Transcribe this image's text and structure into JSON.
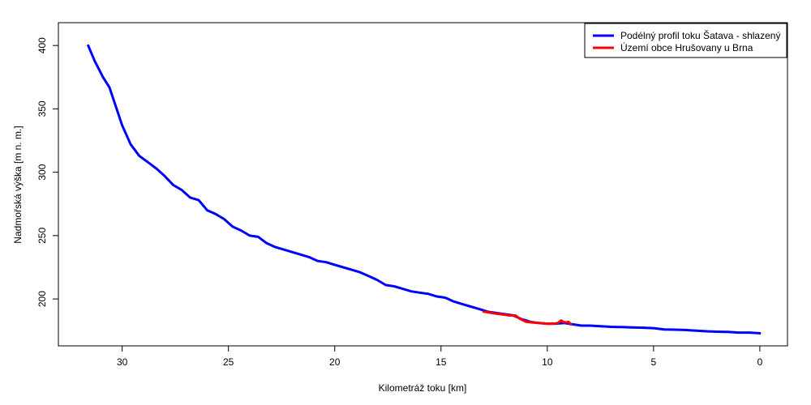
{
  "chart_data": {
    "type": "line",
    "xlabel": "Kilometráž toku [km]",
    "ylabel": "Nadmořská výška [m n. m.]",
    "xlim": [
      33.0,
      -1.3
    ],
    "ylim": [
      163,
      418
    ],
    "x_ticks": [
      30,
      25,
      20,
      15,
      10,
      5,
      0
    ],
    "y_ticks": [
      200,
      250,
      300,
      350,
      400
    ],
    "legend_position": "top-right",
    "series": [
      {
        "name": "Podélný profil toku Šatava - shlazený",
        "color": "#0000ff",
        "points": [
          [
            31.6,
            400
          ],
          [
            31.3,
            388
          ],
          [
            30.9,
            375
          ],
          [
            30.6,
            367
          ],
          [
            30.3,
            352
          ],
          [
            30.0,
            337
          ],
          [
            29.6,
            322
          ],
          [
            29.2,
            313
          ],
          [
            28.8,
            308
          ],
          [
            28.4,
            303
          ],
          [
            28.0,
            297
          ],
          [
            27.6,
            290
          ],
          [
            27.2,
            286
          ],
          [
            26.8,
            280
          ],
          [
            26.4,
            278
          ],
          [
            26.0,
            270
          ],
          [
            25.6,
            267
          ],
          [
            25.2,
            263
          ],
          [
            24.8,
            257
          ],
          [
            24.4,
            254
          ],
          [
            24.0,
            250
          ],
          [
            23.6,
            249
          ],
          [
            23.2,
            244
          ],
          [
            22.8,
            241
          ],
          [
            22.4,
            239
          ],
          [
            22.0,
            237
          ],
          [
            21.6,
            235
          ],
          [
            21.2,
            233
          ],
          [
            20.8,
            230
          ],
          [
            20.4,
            229
          ],
          [
            20.0,
            227
          ],
          [
            19.6,
            225
          ],
          [
            19.2,
            223
          ],
          [
            18.8,
            221
          ],
          [
            18.4,
            218
          ],
          [
            18.0,
            215
          ],
          [
            17.6,
            211
          ],
          [
            17.2,
            210
          ],
          [
            16.8,
            208
          ],
          [
            16.4,
            206
          ],
          [
            16.0,
            205
          ],
          [
            15.6,
            204
          ],
          [
            15.2,
            202
          ],
          [
            14.8,
            201
          ],
          [
            14.4,
            198
          ],
          [
            14.0,
            196
          ],
          [
            13.6,
            194
          ],
          [
            13.2,
            192
          ],
          [
            12.8,
            190
          ],
          [
            12.4,
            189
          ],
          [
            12.0,
            188
          ],
          [
            11.6,
            187
          ],
          [
            11.2,
            184
          ],
          [
            10.8,
            182
          ],
          [
            10.4,
            181
          ],
          [
            10.0,
            180.5
          ],
          [
            9.6,
            180.5
          ],
          [
            9.2,
            181
          ],
          [
            8.8,
            180
          ],
          [
            8.4,
            179
          ],
          [
            8.0,
            179
          ],
          [
            7.5,
            178.5
          ],
          [
            7.0,
            178
          ],
          [
            6.5,
            177.8
          ],
          [
            6.0,
            177.5
          ],
          [
            5.5,
            177.3
          ],
          [
            5.0,
            177
          ],
          [
            4.5,
            176
          ],
          [
            4.0,
            175.8
          ],
          [
            3.5,
            175.5
          ],
          [
            3.0,
            175
          ],
          [
            2.5,
            174.5
          ],
          [
            2.0,
            174.2
          ],
          [
            1.5,
            174
          ],
          [
            1.0,
            173.5
          ],
          [
            0.5,
            173.5
          ],
          [
            0.0,
            173
          ]
        ]
      },
      {
        "name": "Území obce Hrušovany u Brna",
        "color": "#ff0000",
        "points": [
          [
            13.0,
            190
          ],
          [
            12.8,
            189.5
          ],
          [
            12.5,
            188.6
          ],
          [
            12.2,
            188
          ],
          [
            11.8,
            187
          ],
          [
            11.5,
            187
          ],
          [
            11.3,
            184.5
          ],
          [
            11.0,
            182
          ],
          [
            10.7,
            181.5
          ],
          [
            10.4,
            181
          ],
          [
            10.0,
            180.5
          ],
          [
            9.7,
            180.5
          ],
          [
            9.5,
            181
          ],
          [
            9.35,
            183
          ],
          [
            9.25,
            182
          ],
          [
            9.1,
            181.5
          ],
          [
            9.0,
            182
          ],
          [
            8.9,
            180
          ]
        ]
      }
    ]
  }
}
